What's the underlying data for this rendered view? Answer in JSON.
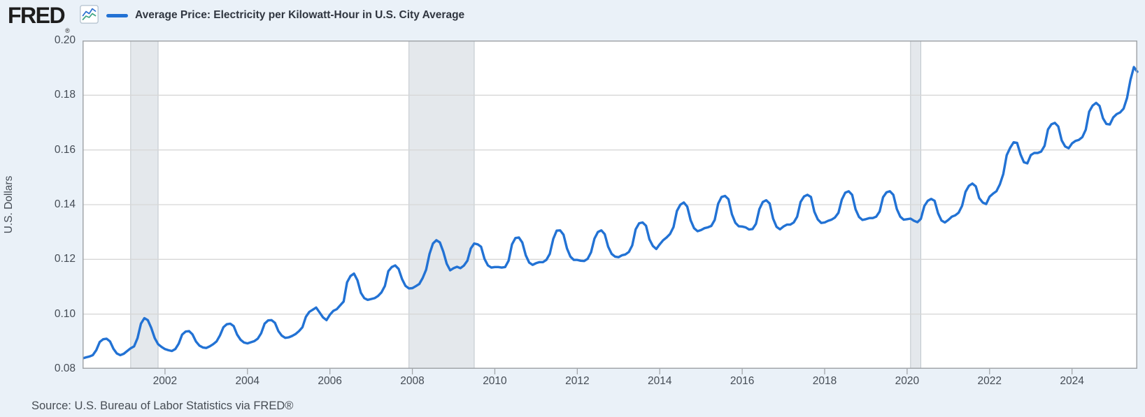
{
  "header": {
    "logo_text": "FRED",
    "registered_mark": "®",
    "legend_label": "Average Price: Electricity per Kilowatt-Hour in U.S. City Average"
  },
  "footer": {
    "source_text": "Source: U.S. Bureau of Labor Statistics via FRED®"
  },
  "colors": {
    "page_background": "#eaf1f8",
    "plot_background": "#ffffff",
    "series_line": "#2272d4",
    "grid_line": "#d7d7d7",
    "plot_border": "#a2a6aa",
    "recession_fill": "#e4e8ec",
    "recession_edge": "#bfc5cb",
    "axis_text": "#454c55",
    "icon_line_blue": "#2b6fd0",
    "icon_line_green": "#3fa583"
  },
  "chart_data": {
    "type": "line",
    "title": "Average Price: Electricity per Kilowatt-Hour in U.S. City Average",
    "ylabel": "U.S. Dollars",
    "units": "U.S. Dollars",
    "ylim": [
      0.08,
      0.2
    ],
    "ytick_values": [
      0.08,
      0.1,
      0.12,
      0.14,
      0.16,
      0.18,
      0.2
    ],
    "ytick_labels": [
      "0.08",
      "0.10",
      "0.12",
      "0.14",
      "0.16",
      "0.18",
      "0.20"
    ],
    "xtick_years": [
      2002,
      2004,
      2006,
      2008,
      2010,
      2012,
      2014,
      2016,
      2018,
      2020,
      2022,
      2024
    ],
    "x_start": 2000.0,
    "x_end": 2025.5833,
    "frequency": "monthly",
    "start_period": "2000-01",
    "end_period": "2025-08",
    "grid": "horizontal-only",
    "legend_position": "top",
    "recession_shading": [
      {
        "from": 2001.167,
        "to": 2001.833
      },
      {
        "from": 2007.917,
        "to": 2009.5
      },
      {
        "from": 2020.083,
        "to": 2020.333
      }
    ],
    "values": [
      0.0838,
      0.0842,
      0.0845,
      0.085,
      0.0868,
      0.0898,
      0.0908,
      0.091,
      0.09,
      0.0873,
      0.0856,
      0.085,
      0.0855,
      0.0865,
      0.0875,
      0.0882,
      0.0912,
      0.0965,
      0.0985,
      0.0978,
      0.095,
      0.0912,
      0.089,
      0.088,
      0.0872,
      0.0868,
      0.0865,
      0.0872,
      0.0892,
      0.0925,
      0.0936,
      0.0938,
      0.0926,
      0.09,
      0.0885,
      0.0878,
      0.0876,
      0.0882,
      0.089,
      0.09,
      0.0922,
      0.0952,
      0.0963,
      0.0965,
      0.0956,
      0.0925,
      0.0906,
      0.0896,
      0.0893,
      0.0897,
      0.0901,
      0.091,
      0.093,
      0.0965,
      0.0977,
      0.0978,
      0.0968,
      0.0938,
      0.0921,
      0.0913,
      0.0915,
      0.092,
      0.0927,
      0.0938,
      0.0952,
      0.099,
      0.1008,
      0.1016,
      0.1024,
      0.1006,
      0.0988,
      0.0978,
      0.0998,
      0.1012,
      0.1018,
      0.1032,
      0.1046,
      0.1116,
      0.1139,
      0.1148,
      0.1124,
      0.1078,
      0.1058,
      0.1052,
      0.1055,
      0.1058,
      0.1066,
      0.1079,
      0.1103,
      0.1157,
      0.1172,
      0.1178,
      0.1165,
      0.1128,
      0.1103,
      0.1094,
      0.1095,
      0.1102,
      0.111,
      0.1132,
      0.1162,
      0.122,
      0.1258,
      0.127,
      0.1262,
      0.1228,
      0.1184,
      0.116,
      0.1168,
      0.1173,
      0.1168,
      0.1177,
      0.1195,
      0.124,
      0.1258,
      0.1255,
      0.1246,
      0.1202,
      0.1178,
      0.117,
      0.1172,
      0.1172,
      0.117,
      0.1172,
      0.1195,
      0.1255,
      0.1278,
      0.128,
      0.1262,
      0.1215,
      0.1188,
      0.118,
      0.1186,
      0.119,
      0.119,
      0.1198,
      0.122,
      0.1275,
      0.1305,
      0.1306,
      0.129,
      0.124,
      0.121,
      0.1198,
      0.1198,
      0.1195,
      0.1194,
      0.1202,
      0.1226,
      0.1276,
      0.13,
      0.1306,
      0.1292,
      0.1246,
      0.122,
      0.121,
      0.1208,
      0.1215,
      0.1218,
      0.1227,
      0.1251,
      0.131,
      0.1332,
      0.1335,
      0.1323,
      0.1273,
      0.1249,
      0.1238,
      0.1255,
      0.127,
      0.128,
      0.1293,
      0.1318,
      0.1377,
      0.14,
      0.1408,
      0.1393,
      0.1343,
      0.1314,
      0.1303,
      0.1307,
      0.1314,
      0.1317,
      0.1322,
      0.1344,
      0.1403,
      0.1428,
      0.1432,
      0.142,
      0.1365,
      0.1334,
      0.1321,
      0.132,
      0.1317,
      0.1309,
      0.1311,
      0.133,
      0.1384,
      0.141,
      0.1416,
      0.1404,
      0.1349,
      0.1319,
      0.131,
      0.132,
      0.1327,
      0.1327,
      0.1335,
      0.1356,
      0.141,
      0.143,
      0.1436,
      0.1428,
      0.1374,
      0.1346,
      0.1333,
      0.1335,
      0.1341,
      0.1345,
      0.1353,
      0.137,
      0.1419,
      0.1444,
      0.1449,
      0.1436,
      0.1383,
      0.1355,
      0.1344,
      0.1347,
      0.1351,
      0.1351,
      0.1356,
      0.1375,
      0.1427,
      0.1445,
      0.1449,
      0.1436,
      0.1384,
      0.1356,
      0.1345,
      0.1347,
      0.1349,
      0.1341,
      0.1336,
      0.1348,
      0.1395,
      0.1414,
      0.1421,
      0.1414,
      0.1369,
      0.1342,
      0.1335,
      0.1344,
      0.1356,
      0.1361,
      0.1371,
      0.1396,
      0.1447,
      0.1469,
      0.1477,
      0.1467,
      0.1424,
      0.1408,
      0.1402,
      0.1429,
      0.144,
      0.1449,
      0.1474,
      0.1512,
      0.1581,
      0.1608,
      0.1628,
      0.1626,
      0.1584,
      0.1555,
      0.1551,
      0.1581,
      0.1589,
      0.1589,
      0.1594,
      0.1615,
      0.1675,
      0.1694,
      0.1699,
      0.1686,
      0.1635,
      0.1613,
      0.1606,
      0.1624,
      0.1633,
      0.1637,
      0.1647,
      0.1674,
      0.174,
      0.1762,
      0.1772,
      0.1761,
      0.1716,
      0.1695,
      0.1693,
      0.1719,
      0.1731,
      0.1737,
      0.1751,
      0.179,
      0.1856,
      0.1903,
      0.1886
    ]
  }
}
